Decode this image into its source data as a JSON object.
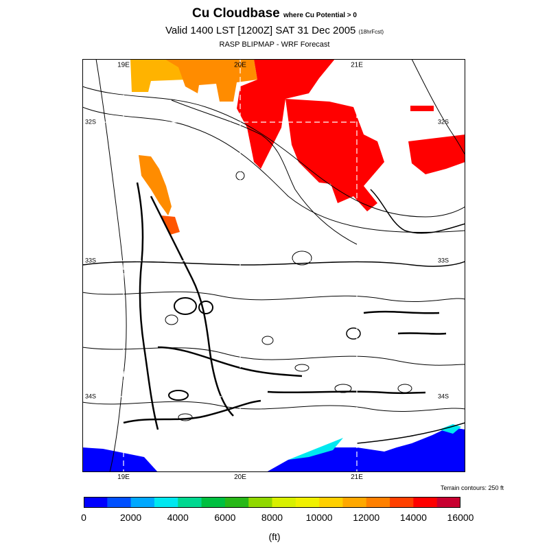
{
  "header": {
    "title": "Cu Cloudbase",
    "title_suffix": "where Cu Potential > 0",
    "valid_line": "Valid 1400 LST [1200Z] SAT 31 Dec 2005",
    "forecast_hours": "(18hrFcst)",
    "source_line": "RASP BLIPMAP - WRF Forecast"
  },
  "map": {
    "top_lon_labels": [
      "19E",
      "20E",
      "21E"
    ],
    "bottom_lon_labels": [
      "19E",
      "20E",
      "21E"
    ],
    "left_lat_labels": [
      "32S",
      "33S",
      "34S"
    ],
    "right_lat_labels": [
      "32S",
      "33S",
      "34S"
    ],
    "terrain_note": "Terrain contours: 250 ft",
    "colors": {
      "blue": "#0000ff",
      "cyan": "#00e8f0",
      "teal": "#00c8e0",
      "orange_light": "#ffb300",
      "orange": "#ff8c00",
      "orange_red": "#ff5500",
      "red": "#ff0000",
      "grid_dash": "#ffffff"
    }
  },
  "legend": {
    "colors": [
      "#0000ff",
      "#0050ff",
      "#00a8ff",
      "#00e8f0",
      "#00d890",
      "#00c040",
      "#28b818",
      "#90d800",
      "#d8f000",
      "#f0f000",
      "#ffd000",
      "#ffa800",
      "#ff8000",
      "#ff4000",
      "#ff0000",
      "#c80030"
    ],
    "tick_labels": [
      "0",
      "2000",
      "4000",
      "6000",
      "8000",
      "10000",
      "12000",
      "14000",
      "16000"
    ],
    "units": "(ft)"
  }
}
